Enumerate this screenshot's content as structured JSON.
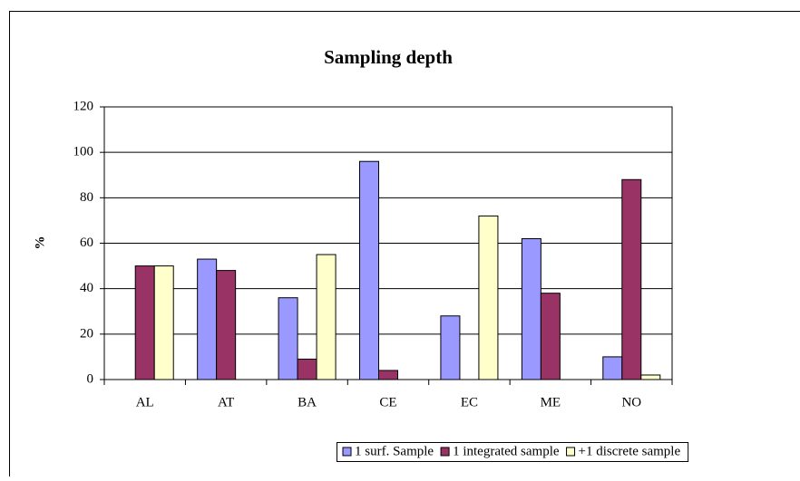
{
  "chart_data": {
    "type": "bar",
    "title": "Sampling depth",
    "y_label": "%",
    "categories": [
      "AL",
      "AT",
      "BA",
      "CE",
      "EC",
      "ME",
      "NO"
    ],
    "series": [
      {
        "name": "1 surf. Sample",
        "color": "#9999ff",
        "values": [
          0,
          53,
          36,
          96,
          28,
          62,
          10
        ]
      },
      {
        "name": "1 integrated sample",
        "color": "#993366",
        "values": [
          50,
          48,
          9,
          4,
          0,
          38,
          88
        ]
      },
      {
        "name": "+1 discrete sample",
        "color": "#ffffcc",
        "values": [
          50,
          0,
          55,
          0,
          72,
          0,
          2
        ]
      }
    ],
    "ylim": [
      0,
      120
    ],
    "yticks": [
      0,
      20,
      40,
      60,
      80,
      100,
      120
    ],
    "grid": true,
    "legend": "bottom"
  }
}
